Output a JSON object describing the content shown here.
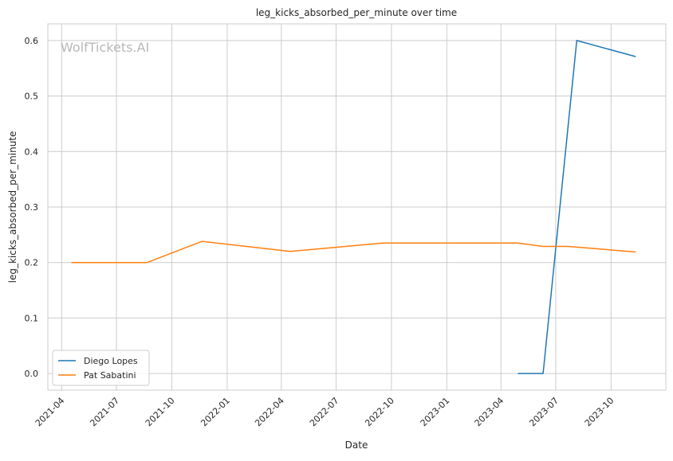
{
  "chart_data": {
    "type": "line",
    "title": "leg_kicks_absorbed_per_minute over time",
    "xlabel": "Date",
    "ylabel": "leg_kicks_absorbed_per_minute",
    "watermark": "WolfTickets.AI",
    "x_axis_kind": "date",
    "xlim": [
      "2021-03-09",
      "2023-12-31"
    ],
    "ylim": [
      -0.03,
      0.63
    ],
    "x_ticks": [
      "2021-04",
      "2021-07",
      "2021-10",
      "2022-01",
      "2022-04",
      "2022-07",
      "2022-10",
      "2023-01",
      "2023-04",
      "2023-07",
      "2023-10"
    ],
    "y_ticks": [
      0.0,
      0.1,
      0.2,
      0.3,
      0.4,
      0.5,
      0.6
    ],
    "y_tick_labels": [
      "0.0",
      "0.1",
      "0.2",
      "0.3",
      "0.4",
      "0.5",
      "0.6"
    ],
    "grid": true,
    "legend_position": "lower-left",
    "series": [
      {
        "name": "Diego Lopes",
        "color": "#1f77b4",
        "points": [
          {
            "x": "2023-04-29",
            "y": 0.0
          },
          {
            "x": "2023-06-10",
            "y": 0.0
          },
          {
            "x": "2023-08-05",
            "y": 0.6
          },
          {
            "x": "2023-11-11",
            "y": 0.571
          }
        ]
      },
      {
        "name": "Pat Sabatini",
        "color": "#ff7f0e",
        "points": [
          {
            "x": "2021-04-17",
            "y": 0.2
          },
          {
            "x": "2021-08-21",
            "y": 0.2
          },
          {
            "x": "2021-11-20",
            "y": 0.238
          },
          {
            "x": "2022-04-16",
            "y": 0.22
          },
          {
            "x": "2022-09-17",
            "y": 0.235
          },
          {
            "x": "2023-04-29",
            "y": 0.235
          },
          {
            "x": "2023-06-10",
            "y": 0.229
          },
          {
            "x": "2023-07-22",
            "y": 0.229
          },
          {
            "x": "2023-11-11",
            "y": 0.219
          }
        ]
      }
    ]
  }
}
